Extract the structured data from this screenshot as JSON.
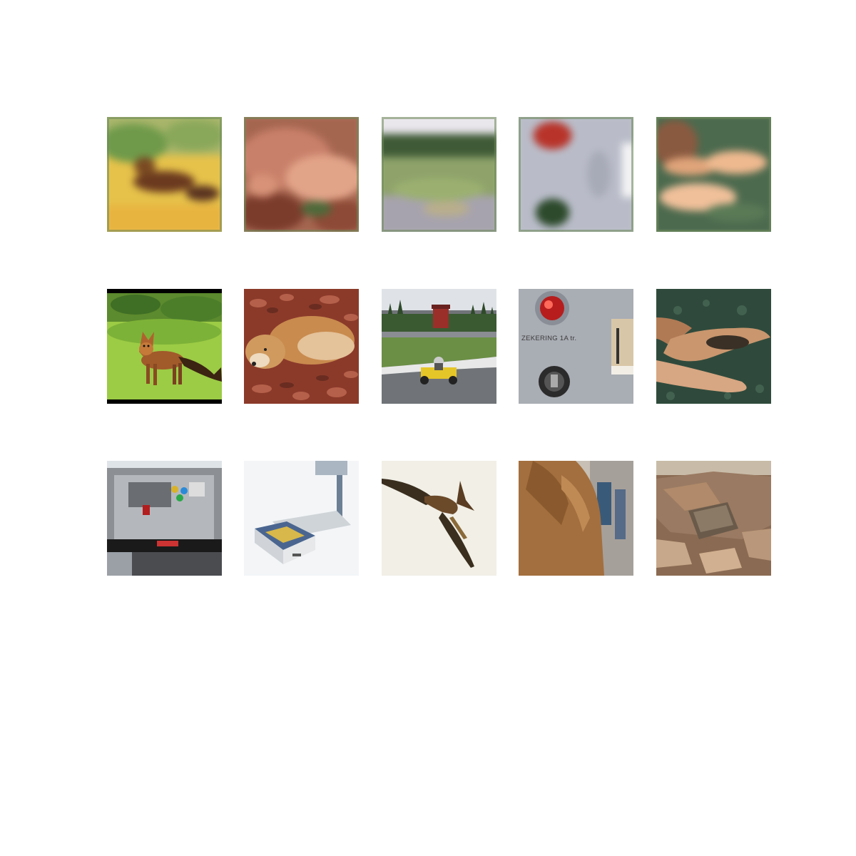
{
  "figure": {
    "rows": [
      {
        "tiles": [
          {
            "subject": "fox-blurred"
          },
          {
            "subject": "dog-blurred"
          },
          {
            "subject": "gokart-blurred"
          },
          {
            "subject": "panel-blurred"
          },
          {
            "subject": "hands-blurred"
          }
        ]
      },
      {
        "tiles": [
          {
            "subject": "fox"
          },
          {
            "subject": "dog-in-leaves"
          },
          {
            "subject": "gokart-track"
          },
          {
            "subject": "switch-panel",
            "text": "ZEKERING 1A tr."
          },
          {
            "subject": "hands"
          }
        ]
      },
      {
        "tiles": [
          {
            "subject": "espresso-machine"
          },
          {
            "subject": "weighing-scale"
          },
          {
            "subject": "kite-bird"
          },
          {
            "subject": "brown-coat"
          },
          {
            "subject": "stone-slab"
          }
        ]
      }
    ]
  },
  "colors": {
    "background": "#ffffff",
    "grass": "#8fc23a",
    "fox": "#a0522d",
    "leaves": "#8b3a2a",
    "dog": "#c98b4e",
    "track": "#707478",
    "panel": "#a9adb4",
    "button_red": "#d32222",
    "skin": "#c9966e",
    "sky_pale": "#f1efe6",
    "stone": "#9a7a62"
  }
}
